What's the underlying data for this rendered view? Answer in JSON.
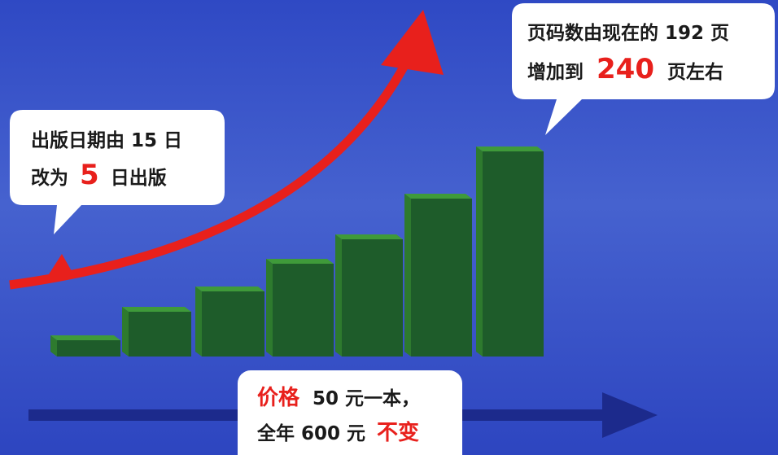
{
  "left_callout": {
    "line1": "出版日期由 15 日",
    "line2": [
      "改为",
      "5",
      "日出版"
    ]
  },
  "right_callout": {
    "line1": "页码数由现在的 192 页",
    "line2": [
      "增加到",
      "240",
      "页左右"
    ]
  },
  "bottom_callout": {
    "line1": [
      "价格",
      "50 元一本，"
    ],
    "line2": [
      "全年 600 元",
      "不变"
    ]
  }
}
